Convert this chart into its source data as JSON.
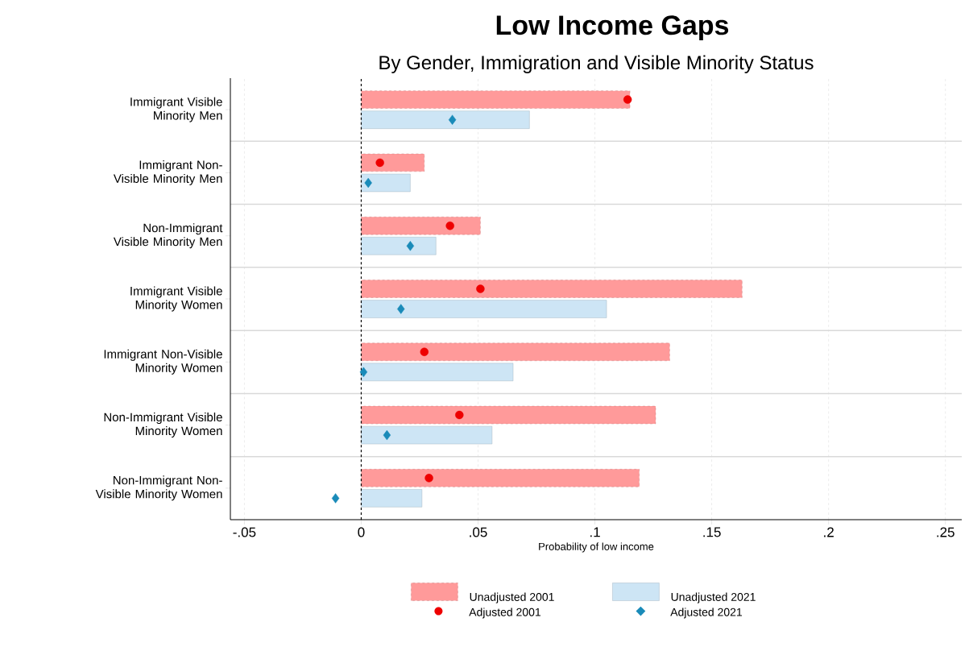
{
  "chart_data": {
    "type": "bar",
    "orientation": "horizontal",
    "title": "Low Income Gaps",
    "subtitle": "By Gender, Immigration and Visible Minority Status",
    "xlabel": "Probability of low income",
    "categories": [
      "Immigrant Visible Minority Men",
      "Immigrant Non-Visible Minority Men",
      "Non-Immigrant Visible Minority Men",
      "Immigrant Visible Minority Women",
      "Immigrant Non-Visible Minority Women",
      "Non-Immigrant Visible Minority Women",
      "Non-Immigrant Non-Visible Minority Women"
    ],
    "series": [
      {
        "name": "Unadjusted 2001",
        "color": "#ff9a9a",
        "line_style": "dashed",
        "values": [
          0.115,
          0.027,
          0.051,
          0.163,
          0.132,
          0.126,
          0.119
        ]
      },
      {
        "name": "Unadjusted 2021",
        "color": "#cde5f5",
        "values": [
          0.072,
          0.021,
          0.032,
          0.105,
          0.065,
          0.056,
          0.026
        ]
      },
      {
        "name": "Adjusted 2001",
        "type": "scatter",
        "marker": "circle",
        "color": "#ee0000",
        "x": [
          "Immigrant Visible Minority Men",
          "Immigrant Non-Visible Minority Men",
          "Non-Immigrant Visible Minority Men",
          "Immigrant Visible Minority Women",
          "Immigrant Non-Visible Minority Women",
          "Non-Immigrant Visible Minority Women",
          "Non-Immigrant Non-Visible Minority Women"
        ],
        "values": [
          0.114,
          0.008,
          0.038,
          0.051,
          0.027,
          0.042,
          0.029
        ]
      },
      {
        "name": "Adjusted 2021",
        "type": "scatter",
        "marker": "diamond",
        "color": "#1a8bb9",
        "x": [
          "Immigrant Visible Minority Men",
          "Immigrant Non-Visible Minority Men",
          "Non-Immigrant Visible Minority Men",
          "Immigrant Visible Minority Women",
          "Immigrant Non-Visible Minority Women",
          "Non-Immigrant Visible Minority Women",
          "Non-Immigrant Non-Visible Minority Women"
        ],
        "values": [
          0.039,
          0.003,
          0.021,
          0.017,
          0.001,
          0.011,
          -0.011
        ]
      }
    ],
    "xlim": [
      -0.056,
      0.257
    ],
    "xticks": [
      {
        "value": -0.05,
        "label": "-.05"
      },
      0,
      {
        "value": 0.05,
        "label": ".05"
      },
      {
        "value": 0.1,
        "label": ".1"
      },
      {
        "value": 0.15,
        "label": ".15"
      },
      {
        "value": 0.2,
        "label": ".2"
      },
      {
        "value": 0.25,
        "label": ".25"
      }
    ],
    "grid": true,
    "legend": "bottom",
    "ref_lines": [
      {
        "axis": "x",
        "value": 0,
        "color": "#000000",
        "line_style": "dashed"
      }
    ]
  }
}
